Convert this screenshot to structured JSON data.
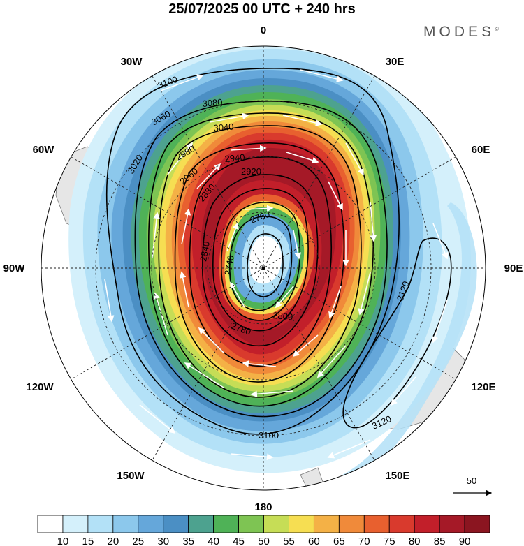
{
  "title": "25/07/2025  00 UTC  + 240 hrs",
  "brand": "MODES",
  "brand_symbol": "©",
  "longitude_labels": {
    "lon_0": "0",
    "lon_30e": "30E",
    "lon_60e": "60E",
    "lon_90e": "90E",
    "lon_120e": "120E",
    "lon_150e": "150E",
    "lon_180": "180",
    "lon_150w": "150W",
    "lon_120w": "120W",
    "lon_90w": "90W",
    "lon_60w": "60W",
    "lon_30w": "30W"
  },
  "contour_labels": [
    "3100",
    "3080",
    "3060",
    "3040",
    "3020",
    "2980",
    "2960",
    "2940",
    "2920",
    "2880",
    "2840",
    "2800",
    "2780",
    "2760",
    "2740",
    "3120",
    "3100",
    "3120"
  ],
  "wind_reference": {
    "value": "50"
  },
  "colorbar": {
    "ticks": [
      "10",
      "15",
      "20",
      "25",
      "30",
      "35",
      "40",
      "45",
      "50",
      "55",
      "60",
      "65",
      "70",
      "75",
      "80",
      "85",
      "90"
    ],
    "colors": [
      "#ffffff",
      "#d4f0fb",
      "#b3e1f7",
      "#8cc8ec",
      "#65a7da",
      "#4b8fc4",
      "#4da28f",
      "#4fb257",
      "#7ec453",
      "#c6dd56",
      "#f6de52",
      "#f4b146",
      "#f08a3a",
      "#e8602f",
      "#d93a2d",
      "#c21f2a",
      "#a51927",
      "#8b1520"
    ]
  },
  "colors": {
    "land": "#e6e6e6",
    "contour": "#000000",
    "vectors": "#ffffff"
  }
}
